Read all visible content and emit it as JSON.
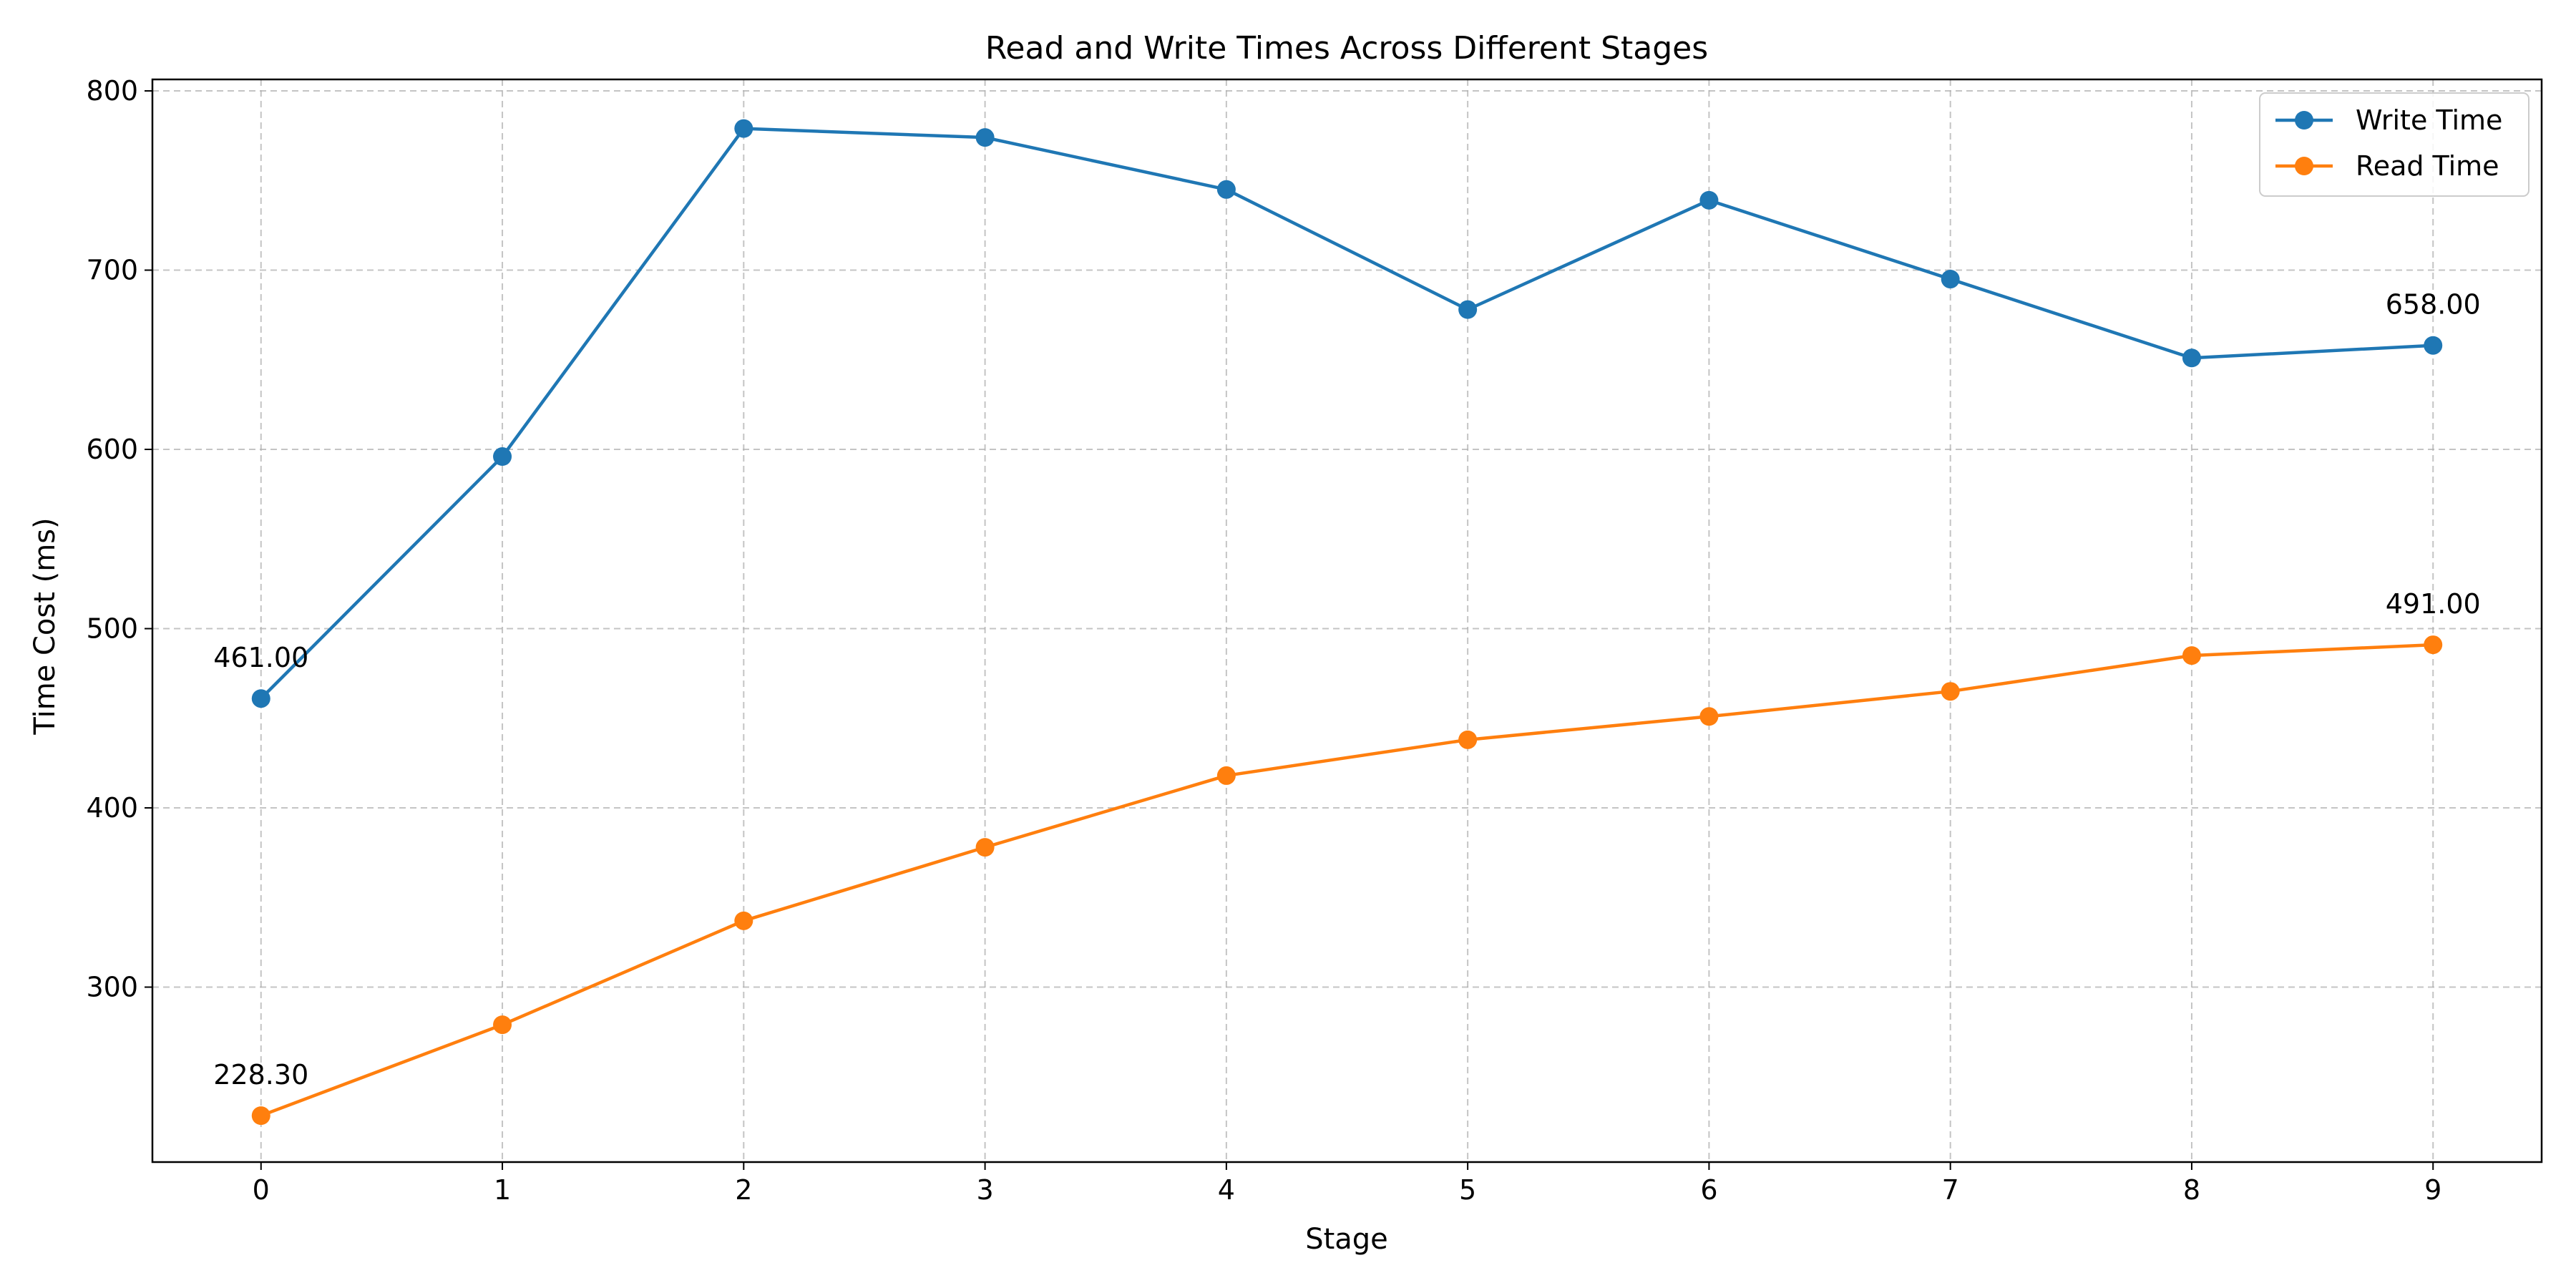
{
  "chart_data": {
    "type": "line",
    "title": "Read and Write Times Across Different Stages",
    "xlabel": "Stage",
    "ylabel": "Time Cost (ms)",
    "x": [
      0,
      1,
      2,
      3,
      4,
      5,
      6,
      7,
      8,
      9
    ],
    "xlim": [
      -0.45,
      9.45
    ],
    "ylim": [
      202.4,
      806.4
    ],
    "xticks": [
      0,
      1,
      2,
      3,
      4,
      5,
      6,
      7,
      8,
      9
    ],
    "yticks": [
      300,
      400,
      500,
      600,
      700,
      800
    ],
    "grid": true,
    "legend": "top-right",
    "series": [
      {
        "name": "Write Time",
        "color": "#1f77b4",
        "values": [
          461.0,
          596,
          779,
          774,
          745,
          678,
          739,
          695,
          651,
          658.0
        ]
      },
      {
        "name": "Read Time",
        "color": "#ff7f0e",
        "values": [
          228.3,
          279,
          337,
          378,
          418,
          438,
          451,
          465,
          485,
          491.0
        ]
      }
    ],
    "annotations": [
      {
        "series": 0,
        "x": 0,
        "text": "461.00"
      },
      {
        "series": 0,
        "x": 9,
        "text": "658.00"
      },
      {
        "series": 1,
        "x": 0,
        "text": "228.30"
      },
      {
        "series": 1,
        "x": 9,
        "text": "491.00"
      }
    ]
  }
}
